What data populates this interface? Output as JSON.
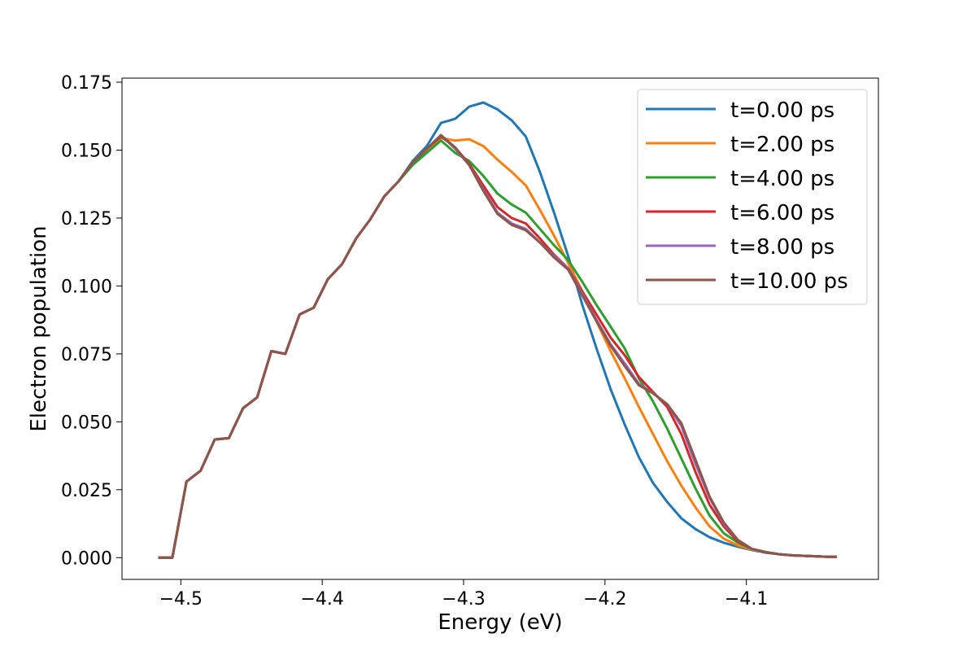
{
  "chart_data": {
    "type": "line",
    "title": "",
    "xlabel": "Energy (eV)",
    "ylabel": "Electron population",
    "xlim": [
      -4.5416,
      -4.0066
    ],
    "ylim": [
      -0.008,
      0.1765
    ],
    "xticks": [
      -4.5,
      -4.4,
      -4.3,
      -4.2,
      -4.1
    ],
    "xtick_labels": [
      "−4.5",
      "−4.4",
      "−4.3",
      "−4.2",
      "−4.1"
    ],
    "yticks": [
      0.0,
      0.025,
      0.05,
      0.075,
      0.1,
      0.125,
      0.15,
      0.175
    ],
    "ytick_labels": [
      "0.000",
      "0.025",
      "0.050",
      "0.075",
      "0.100",
      "0.125",
      "0.150",
      "0.175"
    ],
    "grid": false,
    "legend_position": "top-right",
    "x": [
      -4.516,
      -4.506,
      -4.496,
      -4.486,
      -4.476,
      -4.466,
      -4.456,
      -4.446,
      -4.436,
      -4.426,
      -4.416,
      -4.406,
      -4.396,
      -4.386,
      -4.376,
      -4.366,
      -4.356,
      -4.346,
      -4.336,
      -4.326,
      -4.316,
      -4.306,
      -4.296,
      -4.286,
      -4.276,
      -4.266,
      -4.256,
      -4.246,
      -4.236,
      -4.226,
      -4.216,
      -4.206,
      -4.196,
      -4.186,
      -4.176,
      -4.166,
      -4.156,
      -4.146,
      -4.136,
      -4.126,
      -4.116,
      -4.106,
      -4.096,
      -4.086,
      -4.076,
      -4.066,
      -4.056,
      -4.046,
      -4.036
    ],
    "series": [
      {
        "name": "t=0.00 ps",
        "color": "#1f77b4",
        "values": [
          0.0,
          0.0,
          0.028,
          0.032,
          0.0435,
          0.044,
          0.055,
          0.059,
          0.076,
          0.075,
          0.0895,
          0.092,
          0.1025,
          0.108,
          0.1175,
          0.1245,
          0.133,
          0.1385,
          0.146,
          0.1515,
          0.16,
          0.1615,
          0.166,
          0.1675,
          0.165,
          0.161,
          0.155,
          0.142,
          0.127,
          0.111,
          0.093,
          0.077,
          0.062,
          0.049,
          0.037,
          0.0275,
          0.0205,
          0.0145,
          0.0105,
          0.0075,
          0.0055,
          0.004,
          0.0028,
          0.0018,
          0.0012,
          0.0008,
          0.0006,
          0.0004,
          0.0003
        ]
      },
      {
        "name": "t=2.00 ps",
        "color": "#ff7f0e",
        "values": [
          0.0,
          0.0,
          0.028,
          0.032,
          0.0435,
          0.044,
          0.055,
          0.059,
          0.076,
          0.075,
          0.0895,
          0.092,
          0.1025,
          0.108,
          0.1175,
          0.1245,
          0.133,
          0.1385,
          0.1455,
          0.1495,
          0.1545,
          0.1535,
          0.154,
          0.1515,
          0.1465,
          0.142,
          0.137,
          0.128,
          0.1185,
          0.1085,
          0.098,
          0.087,
          0.076,
          0.066,
          0.0555,
          0.0455,
          0.0355,
          0.0265,
          0.0185,
          0.0115,
          0.007,
          0.0045,
          0.003,
          0.002,
          0.0012,
          0.0008,
          0.0006,
          0.0004,
          0.0003
        ]
      },
      {
        "name": "t=4.00 ps",
        "color": "#2ca02c",
        "values": [
          0.0,
          0.0,
          0.028,
          0.032,
          0.0435,
          0.044,
          0.055,
          0.059,
          0.076,
          0.075,
          0.0895,
          0.092,
          0.1025,
          0.108,
          0.1175,
          0.1245,
          0.133,
          0.1385,
          0.1445,
          0.149,
          0.1535,
          0.149,
          0.146,
          0.1405,
          0.134,
          0.13,
          0.127,
          0.121,
          0.115,
          0.1095,
          0.1015,
          0.093,
          0.085,
          0.077,
          0.066,
          0.0575,
          0.0475,
          0.0365,
          0.0255,
          0.0155,
          0.009,
          0.0055,
          0.0032,
          0.002,
          0.0012,
          0.0008,
          0.0006,
          0.0004,
          0.0003
        ]
      },
      {
        "name": "t=6.00 ps",
        "color": "#d62728",
        "values": [
          0.0,
          0.0,
          0.028,
          0.032,
          0.0435,
          0.044,
          0.055,
          0.059,
          0.076,
          0.075,
          0.0895,
          0.092,
          0.1025,
          0.108,
          0.1175,
          0.1245,
          0.133,
          0.1385,
          0.1455,
          0.1505,
          0.155,
          0.151,
          0.145,
          0.137,
          0.129,
          0.125,
          0.123,
          0.1175,
          0.1115,
          0.1065,
          0.098,
          0.0895,
          0.081,
          0.0745,
          0.0665,
          0.061,
          0.0555,
          0.0455,
          0.0315,
          0.0195,
          0.0115,
          0.006,
          0.0032,
          0.002,
          0.0012,
          0.0008,
          0.0006,
          0.0004,
          0.0003
        ]
      },
      {
        "name": "t=8.00 ps",
        "color": "#9467bd",
        "values": [
          0.0,
          0.0,
          0.028,
          0.032,
          0.0435,
          0.044,
          0.055,
          0.059,
          0.076,
          0.075,
          0.0895,
          0.092,
          0.1025,
          0.108,
          0.1175,
          0.1245,
          0.133,
          0.1385,
          0.1455,
          0.1505,
          0.1555,
          0.1505,
          0.1445,
          0.1355,
          0.127,
          0.123,
          0.121,
          0.116,
          0.111,
          0.1065,
          0.097,
          0.0875,
          0.0785,
          0.0715,
          0.064,
          0.0605,
          0.0565,
          0.0485,
          0.0345,
          0.022,
          0.0125,
          0.0065,
          0.0032,
          0.002,
          0.0012,
          0.0008,
          0.0006,
          0.0004,
          0.0003
        ]
      },
      {
        "name": "t=10.00 ps",
        "color": "#8c564b",
        "values": [
          0.0,
          0.0,
          0.028,
          0.032,
          0.0435,
          0.044,
          0.055,
          0.059,
          0.076,
          0.075,
          0.0895,
          0.092,
          0.1025,
          0.108,
          0.1175,
          0.1245,
          0.133,
          0.1385,
          0.1455,
          0.1505,
          0.1555,
          0.151,
          0.1445,
          0.135,
          0.1265,
          0.1225,
          0.1205,
          0.116,
          0.1105,
          0.106,
          0.0965,
          0.087,
          0.078,
          0.0705,
          0.0635,
          0.0605,
          0.0565,
          0.0495,
          0.036,
          0.0225,
          0.013,
          0.0065,
          0.0032,
          0.002,
          0.0012,
          0.0008,
          0.0006,
          0.0004,
          0.0003
        ]
      }
    ]
  }
}
